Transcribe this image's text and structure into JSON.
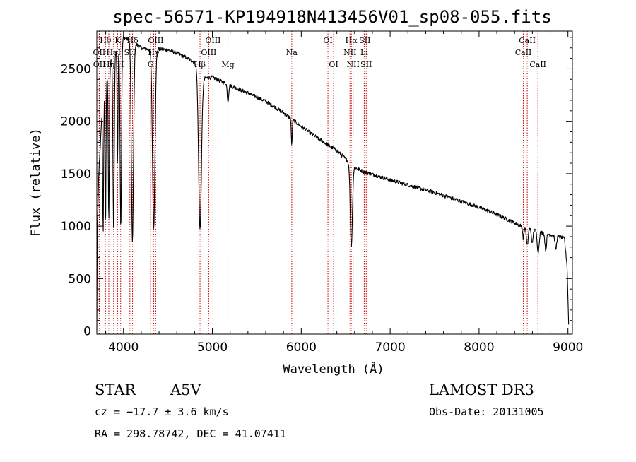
{
  "chart_data": {
    "type": "line",
    "title": "spec-56571-KP194918N413456V01_sp08-055.fits",
    "xlabel": "Wavelength (Å)",
    "ylabel": "Flux (relative)",
    "xlim": [
      3700,
      9050
    ],
    "ylim": [
      -30,
      2860
    ],
    "xticks": [
      4000,
      5000,
      6000,
      7000,
      8000,
      9000
    ],
    "yticks": [
      0,
      500,
      1000,
      1500,
      2000,
      2500
    ],
    "grid": false,
    "series": [
      {
        "name": "flux",
        "continuum": [
          [
            3700,
            0
          ],
          [
            3705,
            900
          ],
          [
            3720,
            1450
          ],
          [
            3760,
            2100
          ],
          [
            3800,
            2350
          ],
          [
            3850,
            2550
          ],
          [
            3900,
            2650
          ],
          [
            3950,
            2700
          ],
          [
            4000,
            2800
          ],
          [
            4100,
            2760
          ],
          [
            4200,
            2700
          ],
          [
            4300,
            2680
          ],
          [
            4400,
            2690
          ],
          [
            4500,
            2680
          ],
          [
            4600,
            2650
          ],
          [
            4700,
            2610
          ],
          [
            4800,
            2560
          ],
          [
            4900,
            2410
          ],
          [
            5000,
            2420
          ],
          [
            5200,
            2340
          ],
          [
            5400,
            2270
          ],
          [
            5600,
            2190
          ],
          [
            5800,
            2080
          ],
          [
            6000,
            1950
          ],
          [
            6200,
            1830
          ],
          [
            6400,
            1720
          ],
          [
            6500,
            1640
          ],
          [
            6600,
            1560
          ],
          [
            6700,
            1520
          ],
          [
            7000,
            1440
          ],
          [
            7500,
            1320
          ],
          [
            8000,
            1180
          ],
          [
            8200,
            1110
          ],
          [
            8500,
            990
          ],
          [
            8700,
            940
          ],
          [
            8900,
            900
          ],
          [
            8960,
            880
          ],
          [
            8990,
            620
          ],
          [
            9010,
            0
          ]
        ],
        "absorption_lines": [
          {
            "center": 3771,
            "depth": 1250,
            "width": 5
          },
          {
            "center": 3798,
            "depth": 1350,
            "width": 5
          },
          {
            "center": 3835,
            "depth": 1450,
            "width": 6
          },
          {
            "center": 3889,
            "depth": 1650,
            "width": 7
          },
          {
            "center": 3933,
            "depth": 1100,
            "width": 5
          },
          {
            "center": 3970,
            "depth": 1750,
            "width": 8
          },
          {
            "center": 4101,
            "depth": 1900,
            "width": 12
          },
          {
            "center": 4340,
            "depth": 1700,
            "width": 14
          },
          {
            "center": 4861,
            "depth": 1500,
            "width": 16
          },
          {
            "center": 5175,
            "depth": 160,
            "width": 8
          },
          {
            "center": 5893,
            "depth": 260,
            "width": 5
          },
          {
            "center": 6563,
            "depth": 780,
            "width": 12
          },
          {
            "center": 8498,
            "depth": 110,
            "width": 7
          },
          {
            "center": 8542,
            "depth": 170,
            "width": 9
          },
          {
            "center": 8598,
            "depth": 140,
            "width": 8
          },
          {
            "center": 8665,
            "depth": 200,
            "width": 10
          },
          {
            "center": 8750,
            "depth": 160,
            "width": 9
          },
          {
            "center": 8863,
            "depth": 130,
            "width": 9
          }
        ]
      }
    ],
    "spectral_lines": [
      {
        "label": "Hθ",
        "wavelength": 3798,
        "row": 1
      },
      {
        "label": "OII",
        "wavelength": 3727,
        "row": 2
      },
      {
        "label": "OII",
        "wavelength": 3729,
        "row": 3
      },
      {
        "label": "Hη",
        "wavelength": 3835,
        "row": 3
      },
      {
        "label": "HeI",
        "wavelength": 3889,
        "row": 2
      },
      {
        "label": "K",
        "wavelength": 3934,
        "row": 1
      },
      {
        "label": "H",
        "wavelength": 3968,
        "row": 3
      },
      {
        "label": "SII",
        "wavelength": 4072,
        "row": 2
      },
      {
        "label": "Hδ",
        "wavelength": 4102,
        "row": 1
      },
      {
        "label": "Hγ",
        "wavelength": 4340,
        "row": 2
      },
      {
        "label": "G",
        "wavelength": 4305,
        "row": 3
      },
      {
        "label": "OIII",
        "wavelength": 4363,
        "row": 1
      },
      {
        "label": "Hβ",
        "wavelength": 4861,
        "row": 3
      },
      {
        "label": "OIII",
        "wavelength": 4959,
        "row": 2
      },
      {
        "label": "OIII",
        "wavelength": 5007,
        "row": 1
      },
      {
        "label": "Mg",
        "wavelength": 5175,
        "row": 3
      },
      {
        "label": "Na",
        "wavelength": 5893,
        "row": 2
      },
      {
        "label": "OI",
        "wavelength": 6300,
        "row": 1
      },
      {
        "label": "OI",
        "wavelength": 6364,
        "row": 3
      },
      {
        "label": "NII",
        "wavelength": 6548,
        "row": 2
      },
      {
        "label": "Hα",
        "wavelength": 6563,
        "row": 1
      },
      {
        "label": "NII",
        "wavelength": 6583,
        "row": 3
      },
      {
        "label": "SII",
        "wavelength": 6716,
        "row": 1
      },
      {
        "label": "Li",
        "wavelength": 6708,
        "row": 2
      },
      {
        "label": "SII",
        "wavelength": 6731,
        "row": 3
      },
      {
        "label": "CaII",
        "wavelength": 8498,
        "row": 2
      },
      {
        "label": "CaII",
        "wavelength": 8542,
        "row": 1
      },
      {
        "label": "CaII",
        "wavelength": 8662,
        "row": 3
      }
    ],
    "line_marker_color": "#cc0000"
  },
  "info": {
    "object_class": "STAR",
    "subclass": "A5V",
    "velocity": "cz = −17.7 ± 3.6 km/s",
    "coords": "RA = 298.78742, DEC =  41.07411",
    "survey": "LAMOST DR3",
    "obs_date": "Obs-Date: 20131005"
  }
}
